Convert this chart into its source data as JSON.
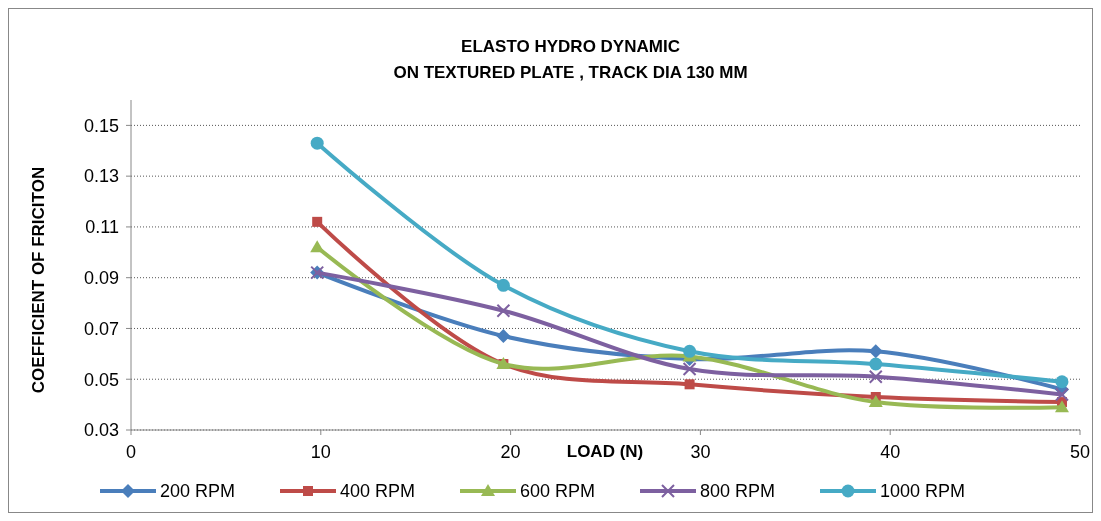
{
  "chart_data": {
    "type": "line",
    "title": "ELASTO HYDRO DYNAMIC",
    "subtitle": "ON TEXTURED PLATE , TRACK DIA 130 MM",
    "xlabel": "LOAD (N)",
    "ylabel": "COEFFICIENT OF FRICITON",
    "x": [
      9.81,
      19.62,
      29.43,
      39.24,
      49.05
    ],
    "series": [
      {
        "name": "200 RPM",
        "color": "#4a7ebb",
        "marker": "diamond",
        "values": [
          0.092,
          0.067,
          0.058,
          0.061,
          0.046
        ]
      },
      {
        "name": "400 RPM",
        "color": "#be4b48",
        "marker": "square",
        "values": [
          0.112,
          0.056,
          0.048,
          0.043,
          0.041
        ]
      },
      {
        "name": "600 RPM",
        "color": "#98b954",
        "marker": "triangle",
        "values": [
          0.102,
          0.056,
          0.059,
          0.041,
          0.039
        ]
      },
      {
        "name": "800 RPM",
        "color": "#7d60a0",
        "marker": "cross",
        "values": [
          0.092,
          0.077,
          0.054,
          0.051,
          0.044
        ]
      },
      {
        "name": "1000 RPM",
        "color": "#46aac5",
        "marker": "circle",
        "values": [
          0.143,
          0.087,
          0.061,
          0.056,
          0.049
        ]
      }
    ],
    "xlim": [
      0,
      50
    ],
    "xticks": [
      0,
      10,
      20,
      30,
      40,
      50
    ],
    "ylim": [
      0.03,
      0.16
    ],
    "yticks": [
      0.03,
      0.05,
      0.07,
      0.09,
      0.11,
      0.13,
      0.15
    ],
    "grid": "y",
    "legend": "bottom",
    "line_style": "solid"
  }
}
